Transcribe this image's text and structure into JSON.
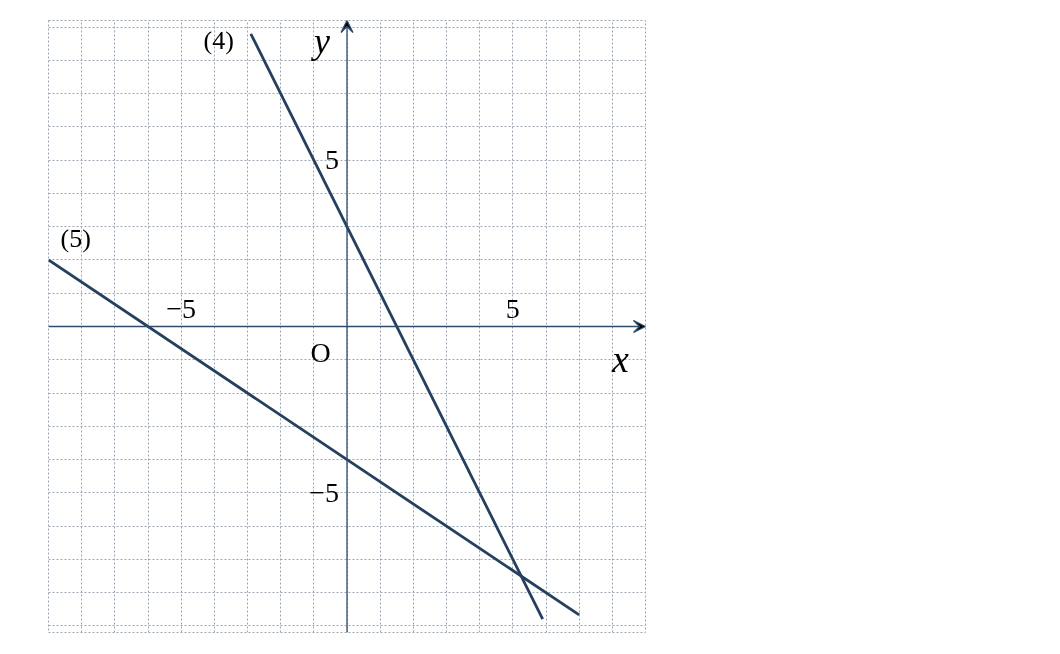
{
  "chart_data": {
    "type": "line",
    "xlabel": "x",
    "ylabel": "y",
    "xlim": [
      -9,
      9
    ],
    "ylim": [
      -9.2,
      9.2
    ],
    "xticks": [
      {
        "value": -9,
        "label": null
      },
      {
        "value": -8,
        "label": null
      },
      {
        "value": -7,
        "label": null
      },
      {
        "value": -6,
        "label": null
      },
      {
        "value": -5,
        "label": "−5"
      },
      {
        "value": -4,
        "label": null
      },
      {
        "value": -3,
        "label": null
      },
      {
        "value": -2,
        "label": null
      },
      {
        "value": -1,
        "label": null
      },
      {
        "value": 0,
        "label": null
      },
      {
        "value": 1,
        "label": null
      },
      {
        "value": 2,
        "label": null
      },
      {
        "value": 3,
        "label": null
      },
      {
        "value": 4,
        "label": null
      },
      {
        "value": 5,
        "label": "5"
      },
      {
        "value": 6,
        "label": null
      },
      {
        "value": 7,
        "label": null
      },
      {
        "value": 8,
        "label": null
      },
      {
        "value": 9,
        "label": null
      }
    ],
    "yticks": [
      {
        "value": -9,
        "label": null
      },
      {
        "value": -8,
        "label": null
      },
      {
        "value": -7,
        "label": null
      },
      {
        "value": -6,
        "label": null
      },
      {
        "value": -5,
        "label": "−5"
      },
      {
        "value": -4,
        "label": null
      },
      {
        "value": -3,
        "label": null
      },
      {
        "value": -2,
        "label": null
      },
      {
        "value": -1,
        "label": null
      },
      {
        "value": 0,
        "label": null
      },
      {
        "value": 1,
        "label": null
      },
      {
        "value": 2,
        "label": null
      },
      {
        "value": 3,
        "label": null
      },
      {
        "value": 4,
        "label": null
      },
      {
        "value": 5,
        "label": "5"
      },
      {
        "value": 6,
        "label": null
      },
      {
        "value": 7,
        "label": null
      },
      {
        "value": 8,
        "label": null
      },
      {
        "value": 9,
        "label": null
      }
    ],
    "grid": true,
    "marker": "none",
    "line_style": "solid",
    "series": [
      {
        "color": "#24405e",
        "x": [
          -2.9,
          5.9
        ],
        "values": [
          8.8,
          -8.8
        ]
      },
      {
        "color": "#24405e",
        "x": [
          -9,
          7
        ],
        "values": [
          2,
          -8.67
        ]
      }
    ],
    "annotations": [
      "(4)",
      "(5)",
      "O"
    ]
  }
}
